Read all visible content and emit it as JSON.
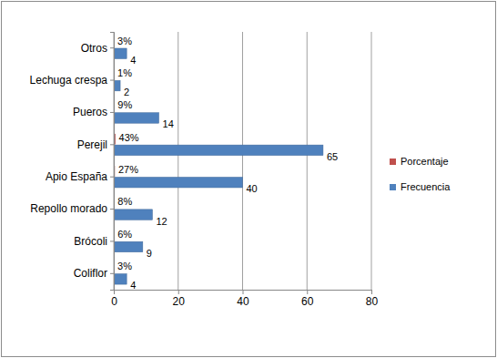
{
  "chart_data": {
    "type": "bar",
    "orientation": "horizontal",
    "categories": [
      "Coliflor",
      "Brócoli",
      "Repollo morado",
      "Apio España",
      "Perejil",
      "Pueros",
      "Lechuga crespa",
      "Otros"
    ],
    "series": [
      {
        "name": "Porcentaje",
        "color": "#c0504d",
        "values": [
          0.03,
          0.06,
          0.08,
          0.27,
          0.43,
          0.09,
          0.01,
          0.03
        ],
        "value_labels": [
          "3%",
          "6%",
          "8%",
          "27%",
          "43%",
          "9%",
          "1%",
          "3%"
        ]
      },
      {
        "name": "Frecuencia",
        "color": "#4f81bd",
        "values": [
          4,
          9,
          12,
          40,
          65,
          14,
          2,
          4
        ]
      }
    ],
    "xlim": [
      0,
      80
    ],
    "xticks": [
      0,
      20,
      40,
      60,
      80
    ],
    "grid": true,
    "legend": "right",
    "data_labels": true
  }
}
